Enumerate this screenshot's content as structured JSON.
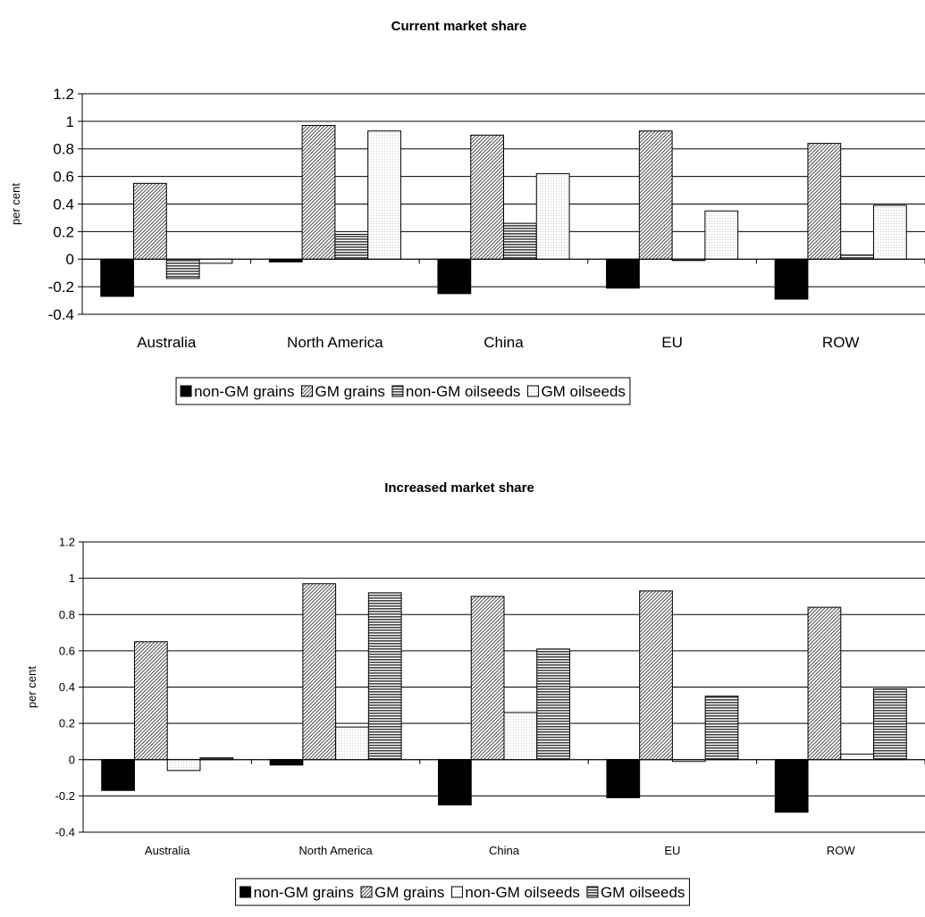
{
  "chart_data": [
    {
      "type": "bar",
      "title": "Current market share",
      "ylabel": "per cent",
      "xlabel": "",
      "ylim": [
        -0.4,
        1.2
      ],
      "yticks": [
        "1.2",
        "1",
        "0.8",
        "0.6",
        "0.4",
        "0.2",
        "0",
        "-0.2",
        "-0.4"
      ],
      "grid": "horizontal",
      "legend_position": "bottom",
      "categories": [
        "Australia",
        "North America",
        "China",
        "EU",
        "ROW"
      ],
      "series": [
        {
          "name": "non-GM grains",
          "pattern": "solid-black",
          "values": [
            -0.27,
            -0.02,
            -0.25,
            -0.21,
            -0.29
          ]
        },
        {
          "name": "GM grains",
          "pattern": "diagonal-hatch",
          "values": [
            0.55,
            0.97,
            0.9,
            0.93,
            0.84
          ]
        },
        {
          "name": "non-GM oilseeds",
          "pattern": "horizontal-lines",
          "values": [
            -0.14,
            0.18,
            0.26,
            -0.01,
            0.03
          ]
        },
        {
          "name": "GM oilseeds",
          "pattern": "light-dots",
          "values": [
            -0.03,
            0.93,
            0.62,
            0.35,
            0.39
          ]
        }
      ]
    },
    {
      "type": "bar",
      "title": "Increased market share",
      "ylabel": "per cent",
      "xlabel": "",
      "ylim": [
        -0.4,
        1.2
      ],
      "yticks": [
        "1.2",
        "1",
        "0.8",
        "0.6",
        "0.4",
        "0.2",
        "0",
        "-0.2",
        "-0.4"
      ],
      "grid": "horizontal",
      "legend_position": "bottom",
      "categories": [
        "Australia",
        "North America",
        "China",
        "EU",
        "ROW"
      ],
      "series": [
        {
          "name": "non-GM grains",
          "pattern": "solid-black",
          "values": [
            -0.17,
            -0.03,
            -0.25,
            -0.21,
            -0.29
          ]
        },
        {
          "name": "GM grains",
          "pattern": "diagonal-hatch",
          "values": [
            0.65,
            0.97,
            0.9,
            0.93,
            0.84
          ]
        },
        {
          "name": "non-GM oilseeds",
          "pattern": "light-dots",
          "values": [
            -0.06,
            0.18,
            0.26,
            -0.01,
            0.03
          ]
        },
        {
          "name": "GM oilseeds",
          "pattern": "horizontal-lines",
          "values": [
            0.01,
            0.92,
            0.61,
            0.35,
            0.39
          ]
        }
      ]
    }
  ]
}
